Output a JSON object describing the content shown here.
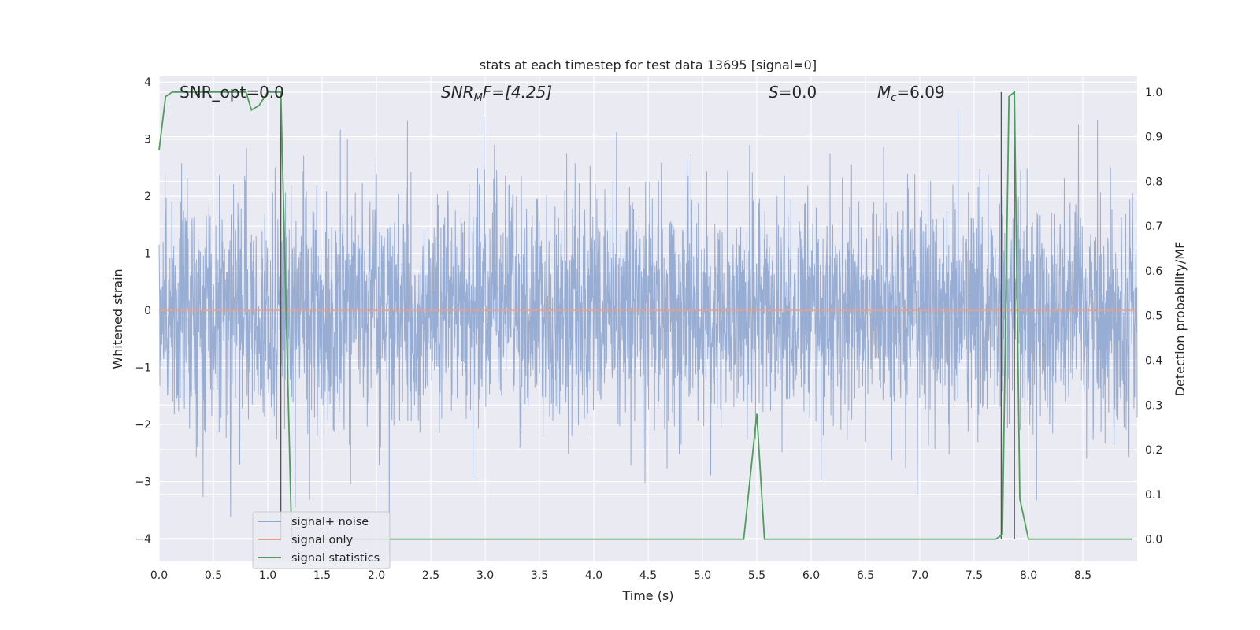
{
  "chart_data": {
    "type": "line",
    "title": "stats at each timestep for test data 13695 [signal=0]",
    "xlabel": "Time (s)",
    "ylabel_left": "Whitened strain",
    "ylabel_right": "Detection probability/MF",
    "xlim": [
      0.0,
      9.0
    ],
    "ylim_left": [
      -4.4,
      4.1
    ],
    "ylim_right": [
      -0.05,
      1.035
    ],
    "xticks": [
      "0.0",
      "0.5",
      "1.0",
      "1.5",
      "2.0",
      "2.5",
      "3.0",
      "3.5",
      "4.0",
      "4.5",
      "5.0",
      "5.5",
      "6.0",
      "6.5",
      "7.0",
      "7.5",
      "8.0",
      "8.5"
    ],
    "yticks_left": [
      "4",
      "3",
      "2",
      "1",
      "0",
      "−1",
      "−2",
      "−3",
      "−4"
    ],
    "yticks_right": [
      "1.0",
      "0.9",
      "0.8",
      "0.7",
      "0.6",
      "0.5",
      "0.4",
      "0.3",
      "0.2",
      "0.1",
      "0.0"
    ],
    "grid": true,
    "legend_position": "lower-left",
    "annotations": {
      "snr_opt": "SNR_opt=0.0",
      "snr_mf_base": "SNR",
      "snr_mf_sub": "M",
      "snr_mf_rest": "F=[4.25]",
      "s_var": "S",
      "s_rest": "=0.0",
      "mc_base": "M",
      "mc_sub": "c",
      "mc_rest": "=6.09"
    },
    "vlines_x": [
      1.12,
      7.75,
      7.87
    ],
    "series": [
      {
        "name": "signal+ noise",
        "color": "#8fa6cf",
        "description_kind": "noise",
        "dense_band_sigma": 1.0,
        "x_range": [
          0.0,
          9.0
        ]
      },
      {
        "name": "signal only",
        "color": "#e8a08a",
        "x": [
          0.0,
          9.0
        ],
        "y": [
          0.0,
          0.0
        ]
      },
      {
        "name": "signal statistics",
        "color": "#4c9f5a",
        "axis": "right",
        "x": [
          0.0,
          0.06,
          0.12,
          0.3,
          0.5,
          0.7,
          0.8,
          0.85,
          0.92,
          1.0,
          1.05,
          1.12,
          1.22,
          1.3,
          2.0,
          3.0,
          4.0,
          5.0,
          5.38,
          5.5,
          5.57,
          6.0,
          7.0,
          7.7,
          7.76,
          7.82,
          7.87,
          7.92,
          8.0,
          8.5,
          8.95
        ],
        "y": [
          0.87,
          0.99,
          1.0,
          1.0,
          1.0,
          1.0,
          1.0,
          0.96,
          0.97,
          1.0,
          1.0,
          1.0,
          0.0,
          0.0,
          0.0,
          0.0,
          0.0,
          0.0,
          0.0,
          0.28,
          0.0,
          0.0,
          0.0,
          0.0,
          0.01,
          0.99,
          1.0,
          0.09,
          0.0,
          0.0,
          0.0
        ]
      }
    ]
  }
}
